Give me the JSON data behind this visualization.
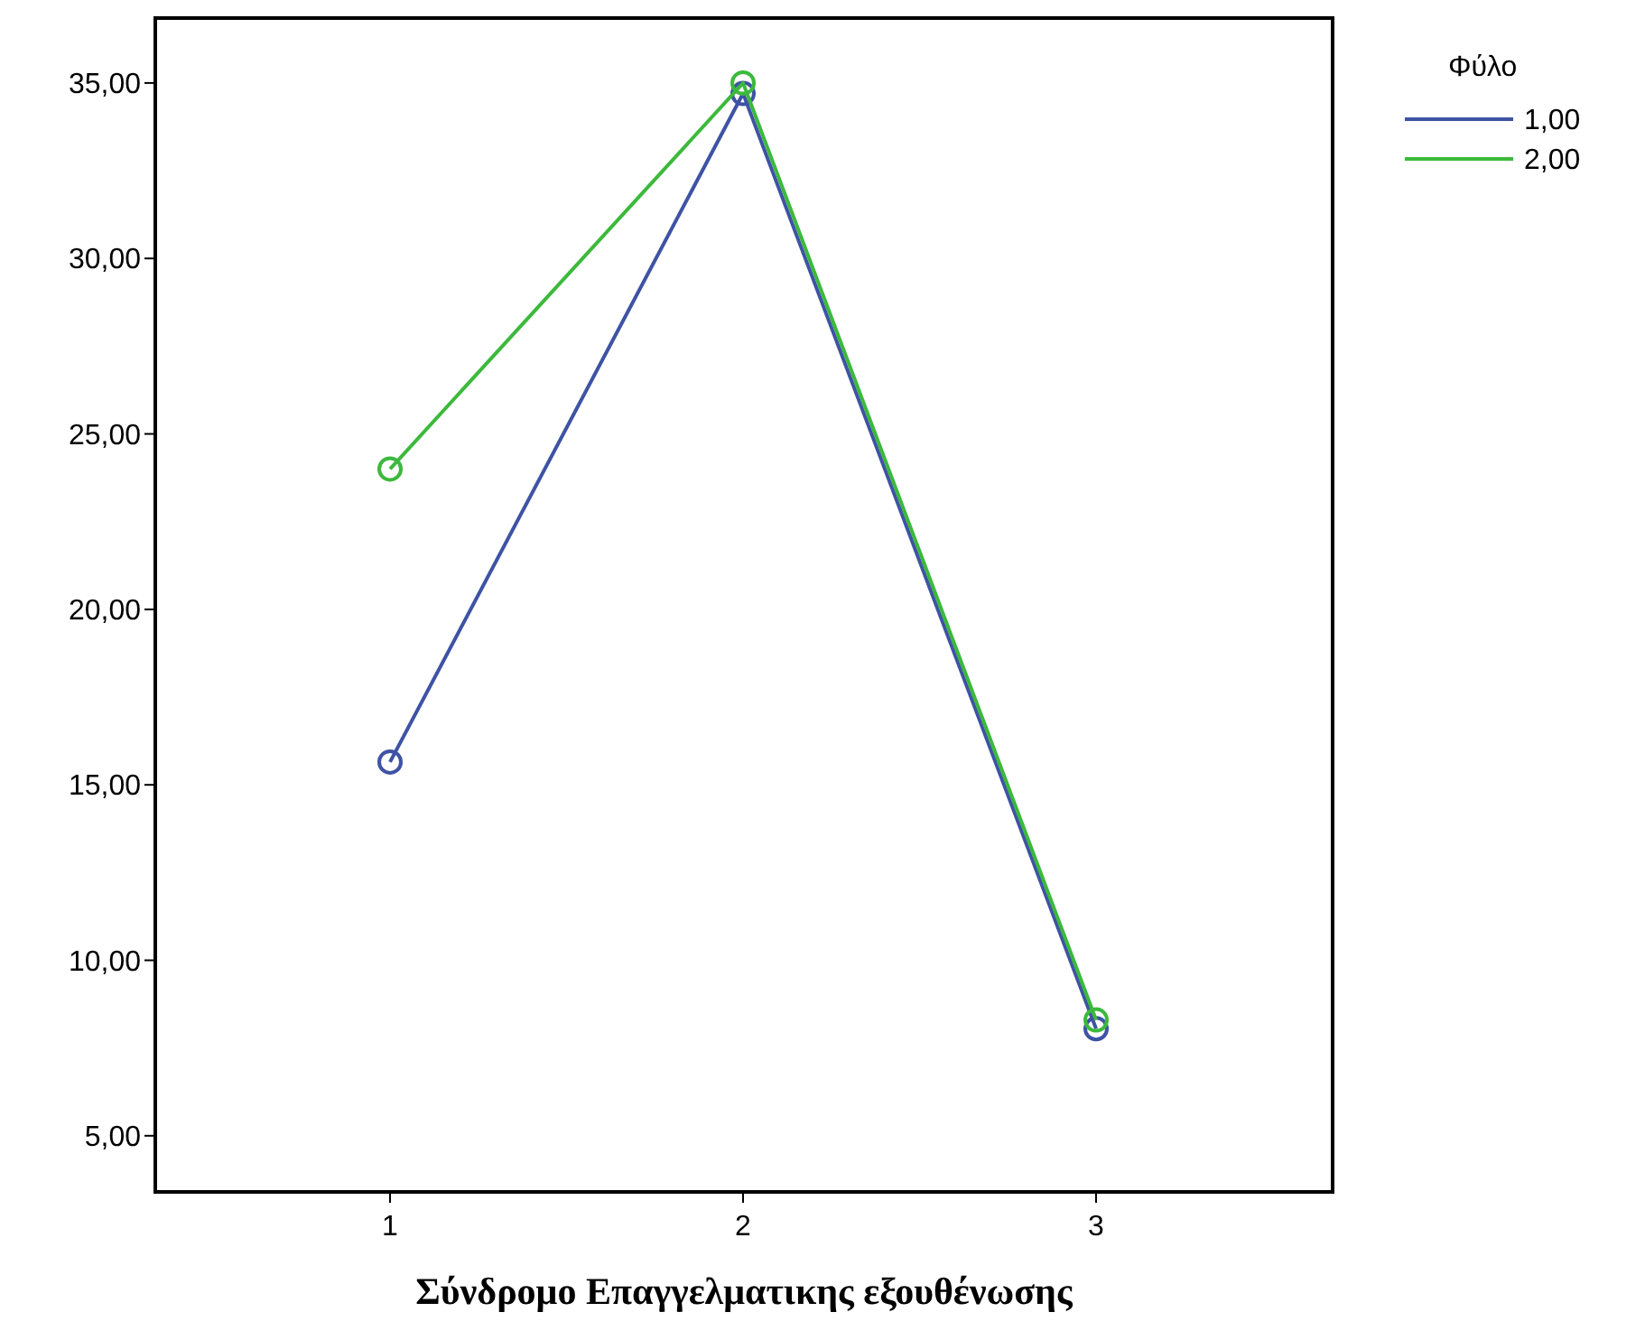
{
  "chart_data": {
    "type": "line",
    "xlabel": "Σύνδρομο Επαγγελματικης εξουθένωσης",
    "legend_title": "Φύλο",
    "x": [
      1,
      2,
      3
    ],
    "series": [
      {
        "name": "1,00",
        "color": "#3e53a4",
        "values": [
          15.65,
          34.7,
          8.05
        ]
      },
      {
        "name": "2,00",
        "color": "#3cb93c",
        "values": [
          24.0,
          35.0,
          8.3
        ]
      }
    ],
    "xlim": [
      0.335,
      3.67
    ],
    "xticks": [
      1,
      2,
      3
    ],
    "ylim": [
      3.4,
      36.85
    ],
    "yticks": [
      {
        "value": 5,
        "label": "5,00"
      },
      {
        "value": 10,
        "label": "10,00"
      },
      {
        "value": 15,
        "label": "15,00"
      },
      {
        "value": 20,
        "label": "20,00"
      },
      {
        "value": 25,
        "label": "25,00"
      },
      {
        "value": 30,
        "label": "30,00"
      },
      {
        "value": 35,
        "label": "35,00"
      }
    ],
    "marker": "circle",
    "legend": "top right",
    "grid": false
  }
}
